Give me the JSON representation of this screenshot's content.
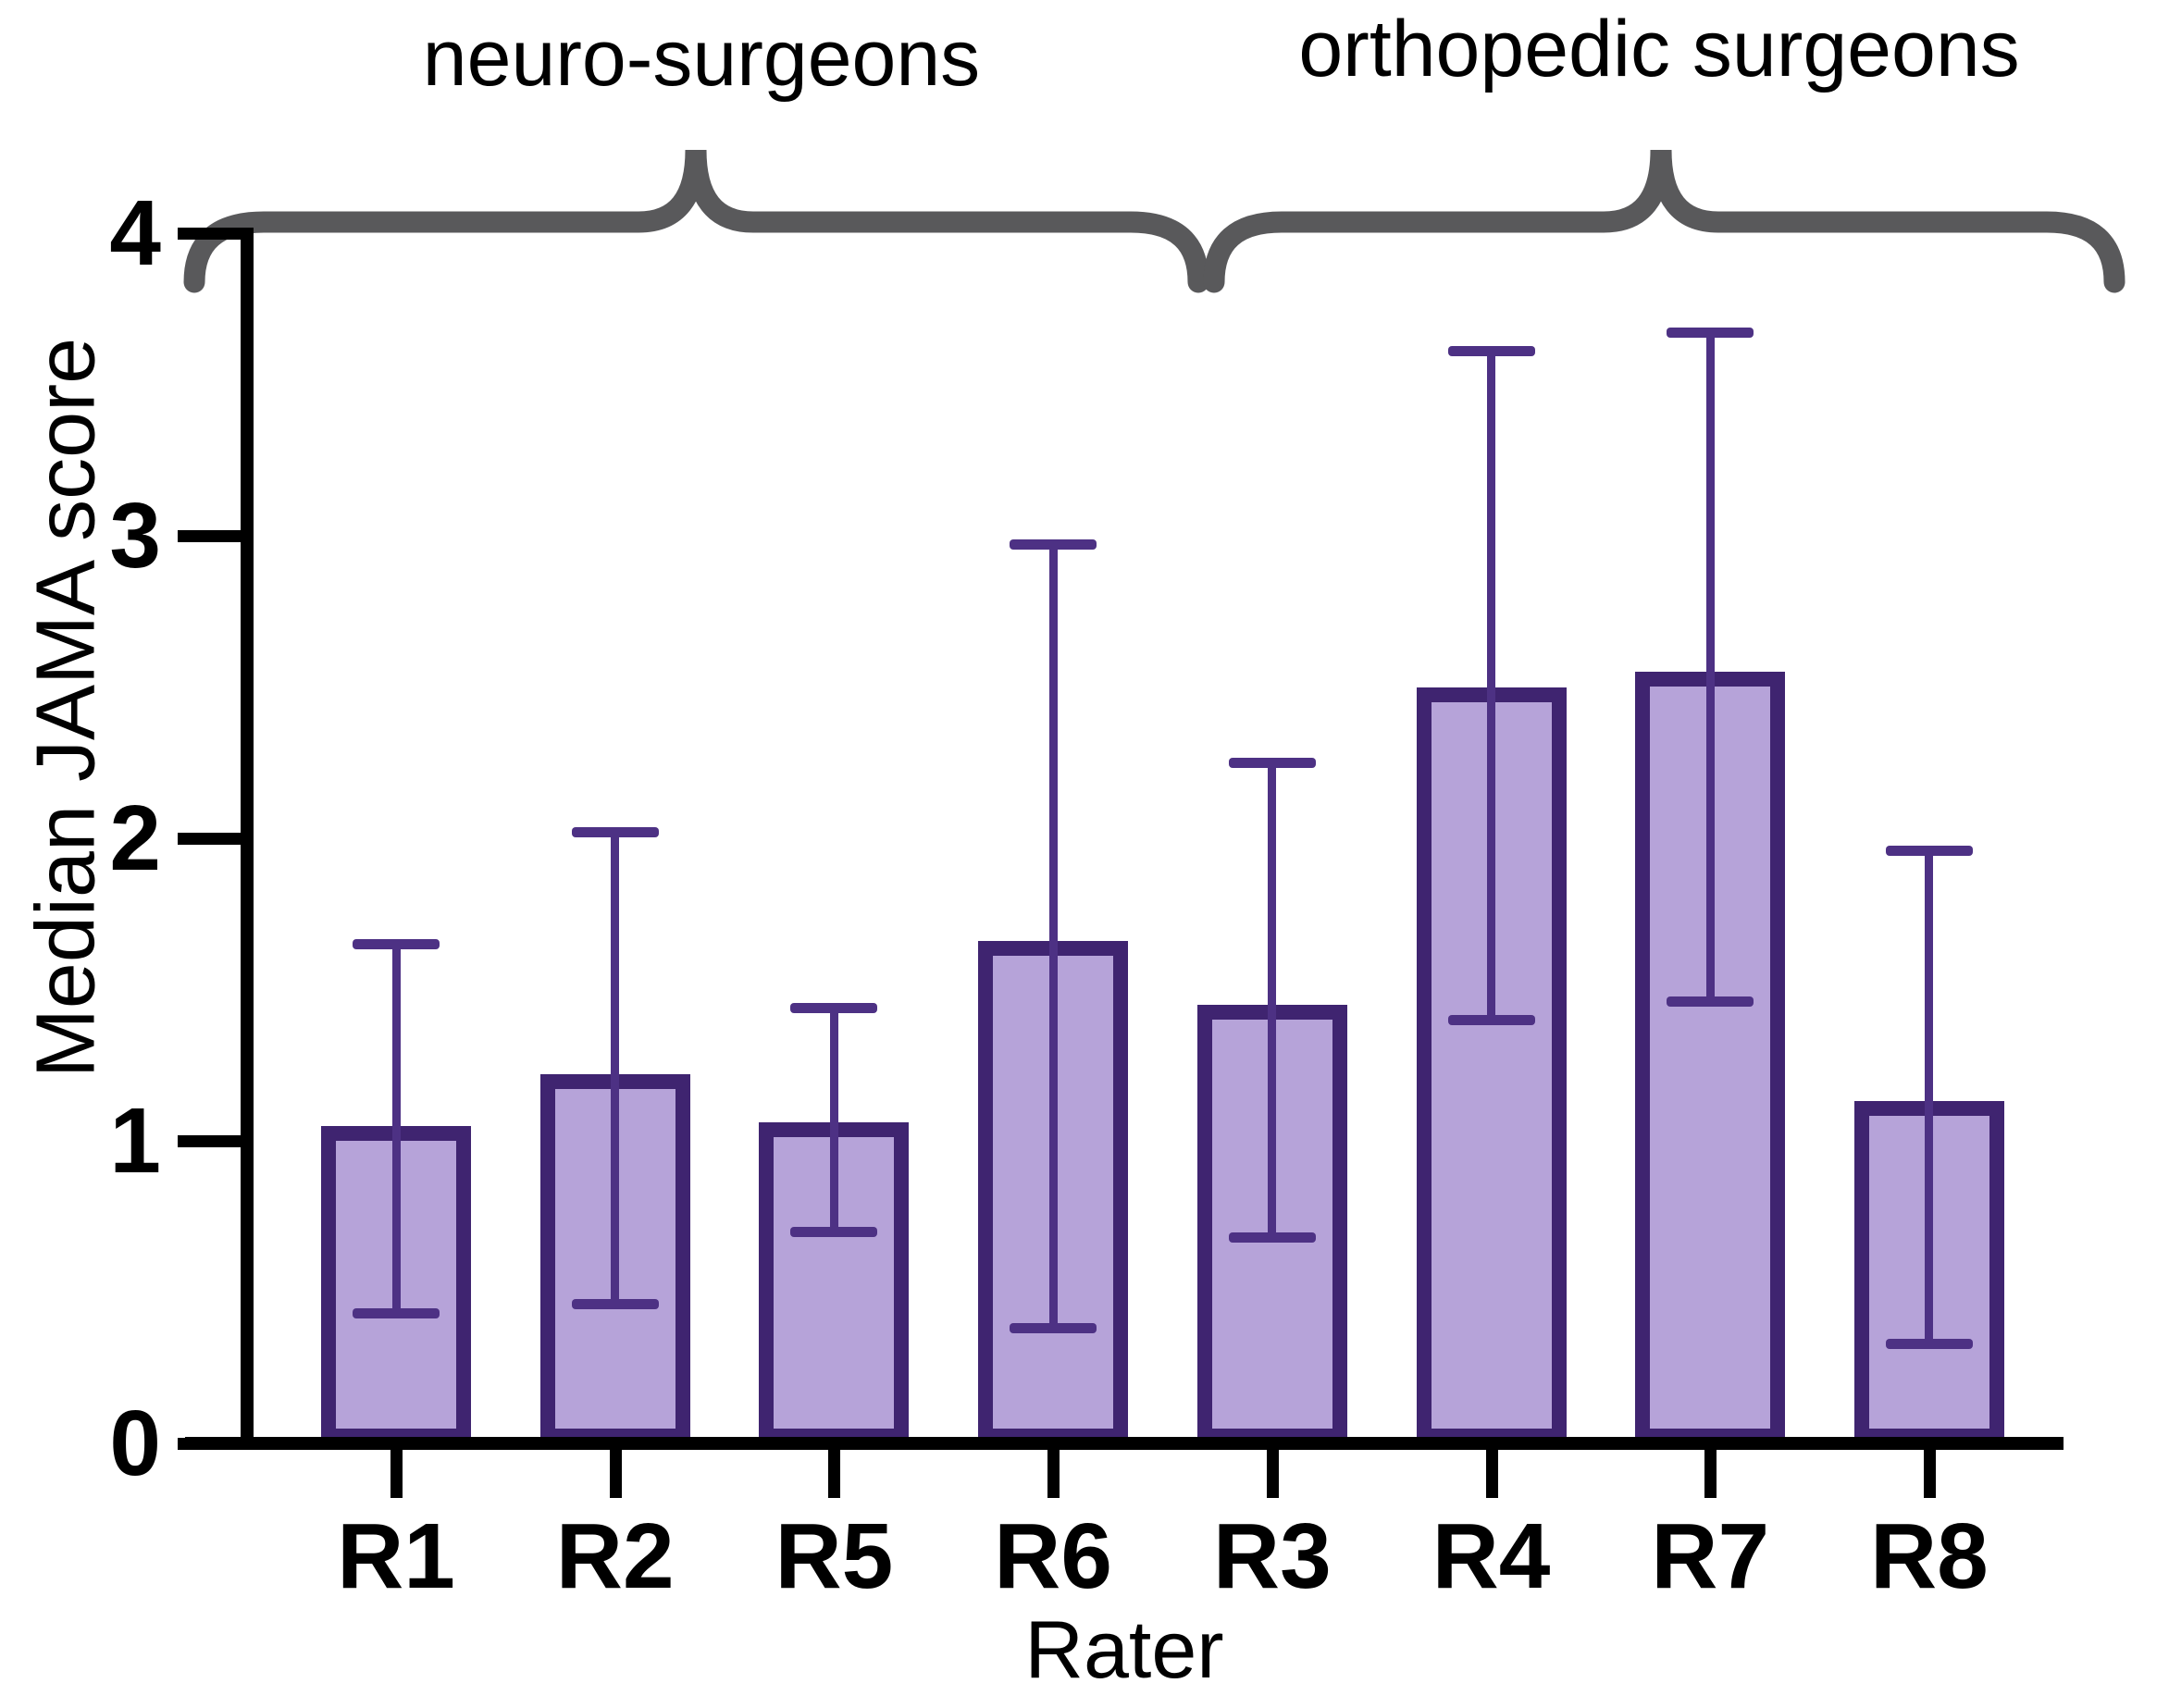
{
  "figure": {
    "background": "#ffffff",
    "group_headers": {
      "left": "neuro-surgeons",
      "right": "orthopedic surgeons"
    },
    "x_axis_title": "Rater",
    "y_axis_title": "Median JAMA score"
  },
  "chart_data": {
    "type": "bar",
    "title": "",
    "xlabel": "Rater",
    "ylabel": "Median JAMA score",
    "ylim": [
      0,
      4
    ],
    "yticks": [
      0,
      1,
      2,
      3,
      4
    ],
    "grid": false,
    "legend": "none",
    "categories": [
      "R1",
      "R2",
      "R5",
      "R6",
      "R3",
      "R4",
      "R7",
      "R8"
    ],
    "values": [
      1.05,
      1.22,
      1.06,
      1.66,
      1.45,
      2.5,
      2.55,
      1.13
    ],
    "error_low": [
      0.43,
      0.46,
      0.7,
      0.38,
      0.68,
      1.4,
      1.46,
      0.33
    ],
    "error_high": [
      1.65,
      2.02,
      1.44,
      2.97,
      2.25,
      3.61,
      3.67,
      1.96
    ],
    "groups": [
      {
        "label": "neuro-surgeons",
        "categories": [
          "R1",
          "R2",
          "R5",
          "R6"
        ]
      },
      {
        "label": "orthopedic surgeons",
        "categories": [
          "R3",
          "R4",
          "R7",
          "R8"
        ]
      }
    ],
    "colors": {
      "bar_fill": "#b6a3d9",
      "bar_border": "#3f2470",
      "error_bar": "#4d3184",
      "brace": "#59595b",
      "text": "#000000"
    }
  }
}
